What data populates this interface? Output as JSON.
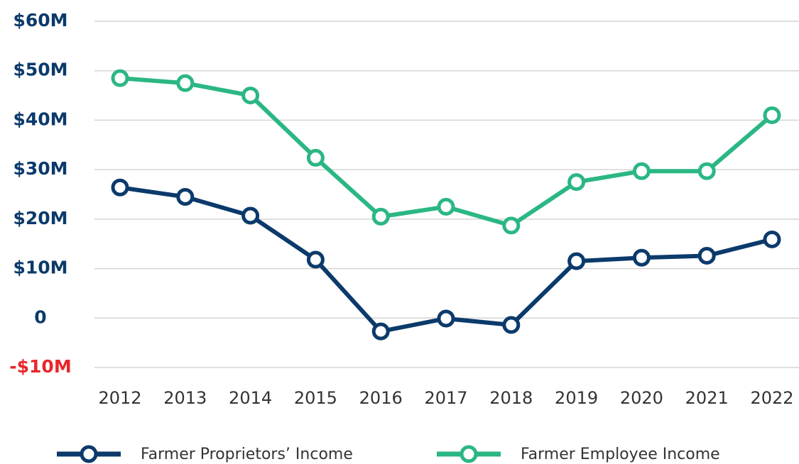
{
  "chart_data": {
    "type": "line",
    "categories": [
      "2012",
      "2013",
      "2014",
      "2015",
      "2016",
      "2017",
      "2018",
      "2019",
      "2020",
      "2021",
      "2022"
    ],
    "series": [
      {
        "name": "Farmer Proprietors’ Income",
        "color": "#0b3a6b",
        "values": [
          26400000,
          24500000,
          20700000,
          11800000,
          -2700000,
          -100000,
          -1400000,
          11500000,
          12200000,
          12600000,
          15900000
        ]
      },
      {
        "name": "Farmer Employee Income",
        "color": "#2bb783",
        "values": [
          48500000,
          47500000,
          45000000,
          32400000,
          20500000,
          22500000,
          18700000,
          27500000,
          29700000,
          29700000,
          41000000
        ]
      }
    ],
    "ylim": [
      -10000000,
      60000000
    ],
    "yticks": [
      {
        "value": -10000000,
        "label": "-$10M"
      },
      0,
      {
        "value": 10000000,
        "label": "$10M"
      },
      {
        "value": 20000000,
        "label": "$20M"
      },
      {
        "value": 30000000,
        "label": "$30M"
      },
      {
        "value": 40000000,
        "label": "$40M"
      },
      {
        "value": 50000000,
        "label": "$50M"
      },
      {
        "value": 60000000,
        "label": "$60M"
      }
    ],
    "grid": true,
    "tick_color": "#0b3a6b",
    "negative_tick_color": "#e8262a",
    "legend": "bottom"
  }
}
